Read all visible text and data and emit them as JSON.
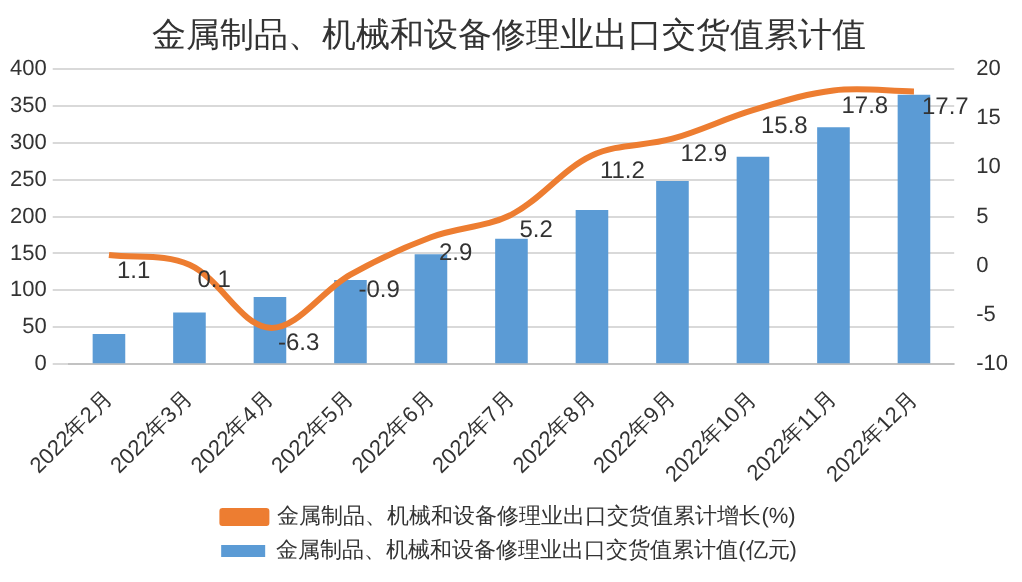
{
  "chart_data": {
    "type": "bar",
    "title": "金属制品、机械和设备修理业出口交货值累计值",
    "categories": [
      "2022年2月",
      "2022年3月",
      "2022年4月",
      "2022年5月",
      "2022年6月",
      "2022年7月",
      "2022年8月",
      "2022年9月",
      "2022年10月",
      "2022年11月",
      "2022年12月"
    ],
    "series": [
      {
        "name": "金属制品、机械和设备修理业出口交货值累计值(亿元)",
        "color": "#5b9bd5",
        "values": [
          41,
          70,
          91,
          114,
          149,
          170,
          209,
          248,
          281,
          321,
          365
        ]
      },
      {
        "name": "金属制品、机械和设备修理业出口交货值累计增长(%)",
        "type": "line",
        "axis": "y2",
        "color": "#ed7d31",
        "values": [
          1.1,
          0.1,
          -6.3,
          -0.9,
          2.9,
          5.2,
          11.2,
          12.9,
          15.8,
          17.8,
          17.7
        ],
        "value_labels": [
          "1.1",
          "0.1",
          "-6.3",
          "-0.9",
          "2.9",
          "5.2",
          "11.2",
          "12.9",
          "15.8",
          "17.8",
          "17.7"
        ]
      }
    ],
    "ylim": [
      0,
      400
    ],
    "yticks": [
      0,
      50,
      100,
      150,
      200,
      250,
      300,
      350,
      400
    ],
    "y2lim": [
      -10,
      20
    ],
    "y2ticks": [
      -10,
      -5,
      0,
      5,
      10,
      15,
      20
    ],
    "grid": "y",
    "legend": "bottom",
    "marker": "none"
  }
}
